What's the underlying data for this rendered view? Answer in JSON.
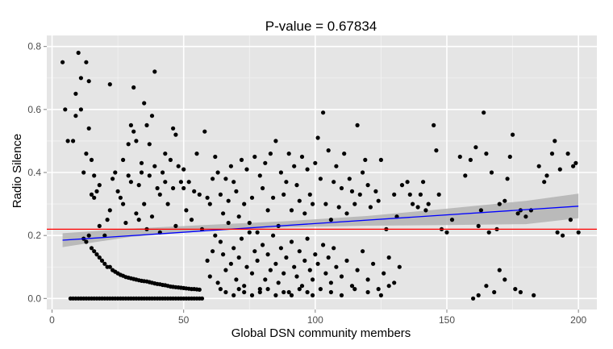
{
  "chart_data": {
    "type": "scatter",
    "title": "P-value = 0.67834",
    "xlabel": "Global DSN community members",
    "ylabel": "Radio Silence",
    "xlim": [
      -2,
      207
    ],
    "ylim": [
      -0.035,
      0.835
    ],
    "xticks": [
      0,
      50,
      100,
      150,
      200
    ],
    "xtick_labels": [
      "0",
      "50",
      "100",
      "150",
      "200"
    ],
    "yticks": [
      0.0,
      0.2,
      0.4,
      0.6,
      0.8
    ],
    "ytick_labels": [
      "0.0",
      "0.2",
      "0.4",
      "0.6",
      "0.8"
    ],
    "grid": true,
    "legend": "none",
    "colors": {
      "panel": "#e5e5e5",
      "grid": "#ffffff",
      "points": "#000000",
      "fit_line": "#0000ff",
      "confidence_band": "#b3b3b3",
      "reference_line": "#ff0000"
    },
    "fit_line": {
      "x": [
        4,
        200
      ],
      "y": [
        0.185,
        0.293
      ]
    },
    "confidence_band": {
      "x": [
        4,
        30,
        60,
        90,
        120,
        150,
        180,
        200
      ],
      "lower": [
        0.163,
        0.196,
        0.215,
        0.226,
        0.231,
        0.233,
        0.236,
        0.255
      ],
      "upper": [
        0.207,
        0.222,
        0.234,
        0.246,
        0.262,
        0.285,
        0.31,
        0.333
      ]
    },
    "reference_line": {
      "y": 0.22
    },
    "points": [
      [
        4,
        0.75
      ],
      [
        5,
        0.6
      ],
      [
        6,
        0.5
      ],
      [
        8,
        0.5
      ],
      [
        9,
        0.58
      ],
      [
        9,
        0.65
      ],
      [
        10,
        0.78
      ],
      [
        11,
        0.7
      ],
      [
        11,
        0.6
      ],
      [
        12,
        0.4
      ],
      [
        13,
        0.46
      ],
      [
        13,
        0.75
      ],
      [
        14,
        0.69
      ],
      [
        14,
        0.54
      ],
      [
        15,
        0.44
      ],
      [
        16,
        0.39
      ],
      [
        15,
        0.33
      ],
      [
        16,
        0.32
      ],
      [
        17,
        0.34
      ],
      [
        18,
        0.36
      ],
      [
        12,
        0.19
      ],
      [
        13,
        0.18
      ],
      [
        14,
        0.2
      ],
      [
        15,
        0.16
      ],
      [
        16,
        0.15
      ],
      [
        17,
        0.14
      ],
      [
        18,
        0.13
      ],
      [
        19,
        0.12
      ],
      [
        20,
        0.11
      ],
      [
        21,
        0.1
      ],
      [
        22,
        0.1
      ],
      [
        23,
        0.09
      ],
      [
        24,
        0.085
      ],
      [
        25,
        0.08
      ],
      [
        26,
        0.075
      ],
      [
        27,
        0.072
      ],
      [
        28,
        0.068
      ],
      [
        29,
        0.066
      ],
      [
        30,
        0.064
      ],
      [
        31,
        0.062
      ],
      [
        32,
        0.06
      ],
      [
        33,
        0.058
      ],
      [
        34,
        0.056
      ],
      [
        35,
        0.055
      ],
      [
        36,
        0.054
      ],
      [
        37,
        0.052
      ],
      [
        38,
        0.05
      ],
      [
        39,
        0.048
      ],
      [
        40,
        0.046
      ],
      [
        41,
        0.045
      ],
      [
        42,
        0.043
      ],
      [
        43,
        0.042
      ],
      [
        44,
        0.04
      ],
      [
        45,
        0.038
      ],
      [
        46,
        0.037
      ],
      [
        47,
        0.036
      ],
      [
        48,
        0.035
      ],
      [
        49,
        0.034
      ],
      [
        50,
        0.033
      ],
      [
        51,
        0.032
      ],
      [
        52,
        0.031
      ],
      [
        53,
        0.03
      ],
      [
        54,
        0.03
      ],
      [
        55,
        0.029
      ],
      [
        56,
        0.028
      ],
      [
        7,
        0.0
      ],
      [
        8,
        0.0
      ],
      [
        9,
        0.0
      ],
      [
        10,
        0.0
      ],
      [
        11,
        0.0
      ],
      [
        12,
        0.0
      ],
      [
        13,
        0.0
      ],
      [
        14,
        0.0
      ],
      [
        15,
        0.0
      ],
      [
        16,
        0.0
      ],
      [
        17,
        0.0
      ],
      [
        18,
        0.0
      ],
      [
        19,
        0.0
      ],
      [
        20,
        0.0
      ],
      [
        21,
        0.0
      ],
      [
        22,
        0.0
      ],
      [
        23,
        0.0
      ],
      [
        24,
        0.0
      ],
      [
        25,
        0.0
      ],
      [
        26,
        0.0
      ],
      [
        27,
        0.0
      ],
      [
        28,
        0.0
      ],
      [
        29,
        0.0
      ],
      [
        30,
        0.0
      ],
      [
        31,
        0.0
      ],
      [
        32,
        0.0
      ],
      [
        33,
        0.0
      ],
      [
        34,
        0.0
      ],
      [
        35,
        0.0
      ],
      [
        36,
        0.0
      ],
      [
        37,
        0.0
      ],
      [
        38,
        0.0
      ],
      [
        39,
        0.0
      ],
      [
        40,
        0.0
      ],
      [
        41,
        0.0
      ],
      [
        42,
        0.0
      ],
      [
        43,
        0.0
      ],
      [
        44,
        0.0
      ],
      [
        45,
        0.0
      ],
      [
        46,
        0.0
      ],
      [
        47,
        0.0
      ],
      [
        48,
        0.0
      ],
      [
        49,
        0.0
      ],
      [
        50,
        0.0
      ],
      [
        51,
        0.0
      ],
      [
        52,
        0.0
      ],
      [
        53,
        0.0
      ],
      [
        54,
        0.0
      ],
      [
        55,
        0.0
      ],
      [
        56,
        0.0
      ],
      [
        57,
        0.0
      ],
      [
        18,
        0.23
      ],
      [
        20,
        0.2
      ],
      [
        21,
        0.25
      ],
      [
        22,
        0.28
      ],
      [
        23,
        0.38
      ],
      [
        22,
        0.68
      ],
      [
        24,
        0.4
      ],
      [
        25,
        0.34
      ],
      [
        26,
        0.32
      ],
      [
        27,
        0.44
      ],
      [
        27,
        0.3
      ],
      [
        28,
        0.24
      ],
      [
        29,
        0.39
      ],
      [
        29,
        0.49
      ],
      [
        30,
        0.37
      ],
      [
        30,
        0.55
      ],
      [
        31,
        0.53
      ],
      [
        31,
        0.67
      ],
      [
        32,
        0.5
      ],
      [
        32,
        0.27
      ],
      [
        33,
        0.25
      ],
      [
        33,
        0.36
      ],
      [
        34,
        0.4
      ],
      [
        34,
        0.43
      ],
      [
        35,
        0.62
      ],
      [
        35,
        0.3
      ],
      [
        36,
        0.55
      ],
      [
        36,
        0.22
      ],
      [
        37,
        0.49
      ],
      [
        37,
        0.39
      ],
      [
        38,
        0.58
      ],
      [
        38,
        0.26
      ],
      [
        39,
        0.72
      ],
      [
        39,
        0.42
      ],
      [
        40,
        0.35
      ],
      [
        41,
        0.33
      ],
      [
        41,
        0.21
      ],
      [
        42,
        0.4
      ],
      [
        43,
        0.46
      ],
      [
        43,
        0.37
      ],
      [
        44,
        0.3
      ],
      [
        45,
        0.44
      ],
      [
        46,
        0.54
      ],
      [
        46,
        0.35
      ],
      [
        47,
        0.52
      ],
      [
        47,
        0.23
      ],
      [
        48,
        0.42
      ],
      [
        49,
        0.37
      ],
      [
        50,
        0.41
      ],
      [
        50,
        0.35
      ],
      [
        51,
        0.28
      ],
      [
        52,
        0.37
      ],
      [
        53,
        0.25
      ],
      [
        54,
        0.34
      ],
      [
        55,
        0.46
      ],
      [
        56,
        0.33
      ],
      [
        57,
        0.22
      ],
      [
        58,
        0.53
      ],
      [
        59,
        0.32
      ],
      [
        60,
        0.3
      ],
      [
        61,
        0.38
      ],
      [
        62,
        0.45
      ],
      [
        63,
        0.4
      ],
      [
        64,
        0.33
      ],
      [
        65,
        0.27
      ],
      [
        66,
        0.38
      ],
      [
        67,
        0.31
      ],
      [
        68,
        0.42
      ],
      [
        69,
        0.37
      ],
      [
        70,
        0.34
      ],
      [
        71,
        0.26
      ],
      [
        72,
        0.44
      ],
      [
        73,
        0.3
      ],
      [
        74,
        0.41
      ],
      [
        75,
        0.24
      ],
      [
        76,
        0.32
      ],
      [
        77,
        0.45
      ],
      [
        78,
        0.21
      ],
      [
        79,
        0.39
      ],
      [
        80,
        0.35
      ],
      [
        81,
        0.43
      ],
      [
        82,
        0.28
      ],
      [
        83,
        0.46
      ],
      [
        84,
        0.32
      ],
      [
        85,
        0.5
      ],
      [
        86,
        0.23
      ],
      [
        87,
        0.4
      ],
      [
        88,
        0.33
      ],
      [
        89,
        0.37
      ],
      [
        90,
        0.46
      ],
      [
        91,
        0.28
      ],
      [
        92,
        0.42
      ],
      [
        93,
        0.36
      ],
      [
        94,
        0.31
      ],
      [
        95,
        0.45
      ],
      [
        96,
        0.27
      ],
      [
        97,
        0.41
      ],
      [
        98,
        0.33
      ],
      [
        99,
        0.3
      ],
      [
        100,
        0.43
      ],
      [
        101,
        0.51
      ],
      [
        102,
        0.38
      ],
      [
        103,
        0.59
      ],
      [
        104,
        0.3
      ],
      [
        105,
        0.47
      ],
      [
        106,
        0.25
      ],
      [
        107,
        0.37
      ],
      [
        108,
        0.42
      ],
      [
        109,
        0.29
      ],
      [
        110,
        0.35
      ],
      [
        111,
        0.46
      ],
      [
        112,
        0.27
      ],
      [
        113,
        0.38
      ],
      [
        114,
        0.34
      ],
      [
        115,
        0.3
      ],
      [
        116,
        0.55
      ],
      [
        117,
        0.33
      ],
      [
        118,
        0.4
      ],
      [
        119,
        0.44
      ],
      [
        120,
        0.36
      ],
      [
        121,
        0.29
      ],
      [
        123,
        0.34
      ],
      [
        124,
        0.31
      ],
      [
        125,
        0.44
      ],
      [
        127,
        0.22
      ],
      [
        130,
        0.33
      ],
      [
        131,
        0.26
      ],
      [
        133,
        0.36
      ],
      [
        135,
        0.37
      ],
      [
        136,
        0.33
      ],
      [
        137,
        0.3
      ],
      [
        139,
        0.29
      ],
      [
        140,
        0.33
      ],
      [
        141,
        0.37
      ],
      [
        142,
        0.28
      ],
      [
        143,
        0.3
      ],
      [
        145,
        0.55
      ],
      [
        146,
        0.47
      ],
      [
        147,
        0.33
      ],
      [
        148,
        0.22
      ],
      [
        150,
        0.21
      ],
      [
        152,
        0.25
      ],
      [
        155,
        0.45
      ],
      [
        157,
        0.39
      ],
      [
        159,
        0.44
      ],
      [
        161,
        0.48
      ],
      [
        162,
        0.23
      ],
      [
        163,
        0.28
      ],
      [
        164,
        0.59
      ],
      [
        165,
        0.46
      ],
      [
        166,
        0.21
      ],
      [
        167,
        0.4
      ],
      [
        169,
        0.22
      ],
      [
        170,
        0.3
      ],
      [
        172,
        0.31
      ],
      [
        173,
        0.38
      ],
      [
        174,
        0.45
      ],
      [
        175,
        0.52
      ],
      [
        177,
        0.27
      ],
      [
        178,
        0.28
      ],
      [
        180,
        0.26
      ],
      [
        182,
        0.28
      ],
      [
        185,
        0.42
      ],
      [
        187,
        0.37
      ],
      [
        188,
        0.39
      ],
      [
        190,
        0.46
      ],
      [
        191,
        0.5
      ],
      [
        192,
        0.21
      ],
      [
        193,
        0.41
      ],
      [
        194,
        0.2
      ],
      [
        196,
        0.46
      ],
      [
        197,
        0.25
      ],
      [
        198,
        0.42
      ],
      [
        199,
        0.43
      ],
      [
        200,
        0.21
      ],
      [
        59,
        0.12
      ],
      [
        60,
        0.07
      ],
      [
        61,
        0.15
      ],
      [
        62,
        0.2
      ],
      [
        63,
        0.05
      ],
      [
        64,
        0.18
      ],
      [
        65,
        0.14
      ],
      [
        66,
        0.09
      ],
      [
        67,
        0.24
      ],
      [
        68,
        0.11
      ],
      [
        69,
        0.16
      ],
      [
        70,
        0.06
      ],
      [
        71,
        0.13
      ],
      [
        72,
        0.19
      ],
      [
        73,
        0.04
      ],
      [
        74,
        0.1
      ],
      [
        75,
        0.21
      ],
      [
        76,
        0.08
      ],
      [
        77,
        0.15
      ],
      [
        78,
        0.12
      ],
      [
        79,
        0.03
      ],
      [
        80,
        0.17
      ],
      [
        81,
        0.06
      ],
      [
        82,
        0.14
      ],
      [
        83,
        0.09
      ],
      [
        84,
        0.2
      ],
      [
        85,
        0.11
      ],
      [
        86,
        0.05
      ],
      [
        87,
        0.16
      ],
      [
        88,
        0.08
      ],
      [
        89,
        0.13
      ],
      [
        90,
        0.02
      ],
      [
        91,
        0.18
      ],
      [
        92,
        0.1
      ],
      [
        93,
        0.07
      ],
      [
        94,
        0.15
      ],
      [
        95,
        0.04
      ],
      [
        96,
        0.12
      ],
      [
        97,
        0.19
      ],
      [
        98,
        0.09
      ],
      [
        99,
        0.06
      ],
      [
        100,
        0.14
      ],
      [
        101,
        0.11
      ],
      [
        102,
        0.03
      ],
      [
        103,
        0.17
      ],
      [
        104,
        0.08
      ],
      [
        105,
        0.13
      ],
      [
        106,
        0.05
      ],
      [
        107,
        0.16
      ],
      [
        108,
        0.1
      ],
      [
        110,
        0.07
      ],
      [
        112,
        0.12
      ],
      [
        114,
        0.04
      ],
      [
        116,
        0.09
      ],
      [
        118,
        0.15
      ],
      [
        120,
        0.06
      ],
      [
        122,
        0.11
      ],
      [
        124,
        0.03
      ],
      [
        126,
        0.08
      ],
      [
        128,
        0.13
      ],
      [
        130,
        0.05
      ],
      [
        132,
        0.1
      ],
      [
        160,
        0.0
      ],
      [
        162,
        0.01
      ],
      [
        165,
        0.04
      ],
      [
        168,
        0.02
      ],
      [
        170,
        0.09
      ],
      [
        172,
        0.06
      ],
      [
        176,
        0.03
      ],
      [
        178,
        0.02
      ],
      [
        183,
        0.01
      ],
      [
        64,
        0.03
      ],
      [
        66,
        0.02
      ],
      [
        69,
        0.01
      ],
      [
        71,
        0.03
      ],
      [
        73,
        0.02
      ],
      [
        76,
        0.01
      ],
      [
        79,
        0.02
      ],
      [
        82,
        0.03
      ],
      [
        85,
        0.01
      ],
      [
        88,
        0.02
      ],
      [
        91,
        0.01
      ],
      [
        94,
        0.03
      ],
      [
        97,
        0.02
      ],
      [
        99,
        0.01
      ],
      [
        106,
        0.02
      ],
      [
        110,
        0.01
      ],
      [
        115,
        0.03
      ],
      [
        120,
        0.02
      ],
      [
        125,
        0.01
      ],
      [
        128,
        0.04
      ]
    ]
  }
}
